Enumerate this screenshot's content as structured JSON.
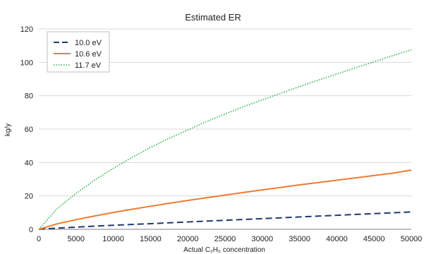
{
  "chart_data": {
    "type": "line",
    "title": "Estimated ER",
    "xlabel": "Actual C₂H₆ concentration",
    "ylabel": "kg/y",
    "xlim": [
      0,
      50000
    ],
    "ylim": [
      0,
      120
    ],
    "x_ticks": [
      0,
      5000,
      10000,
      15000,
      20000,
      25000,
      30000,
      35000,
      40000,
      45000,
      50000
    ],
    "y_ticks": [
      0,
      20,
      40,
      60,
      80,
      100,
      120
    ],
    "grid": "horizontal",
    "legend_position": "top-left",
    "x": [
      0,
      2500,
      5000,
      7500,
      10000,
      12500,
      15000,
      17500,
      20000,
      22500,
      25000,
      27500,
      30000,
      32500,
      35000,
      37500,
      40000,
      42500,
      45000,
      47500,
      50000
    ],
    "series": [
      {
        "name": "10.0 eV",
        "color": "#1f3a6e",
        "style": "dashed",
        "values": [
          0,
          0.7,
          1.3,
          1.9,
          2.4,
          2.9,
          3.4,
          3.9,
          4.4,
          4.9,
          5.4,
          5.9,
          6.4,
          6.9,
          7.4,
          7.9,
          8.4,
          8.9,
          9.4,
          9.9,
          10.4
        ]
      },
      {
        "name": "10.6 eV",
        "color": "#ed7d31",
        "style": "solid",
        "values": [
          0,
          3.3,
          5.8,
          8.0,
          10.1,
          12.0,
          13.8,
          15.6,
          17.3,
          18.9,
          20.5,
          22.1,
          23.6,
          25.1,
          26.6,
          28.0,
          29.4,
          30.8,
          32.2,
          33.6,
          35.5
        ]
      },
      {
        "name": "11.7 eV",
        "color": "#2fb34a",
        "style": "dotted",
        "values": [
          0,
          12.5,
          21.5,
          29.5,
          36.5,
          43.0,
          49.0,
          54.5,
          59.5,
          64.5,
          69.0,
          73.5,
          77.5,
          81.5,
          85.5,
          89.3,
          93.0,
          96.7,
          100.3,
          104.0,
          107.5
        ]
      }
    ]
  }
}
